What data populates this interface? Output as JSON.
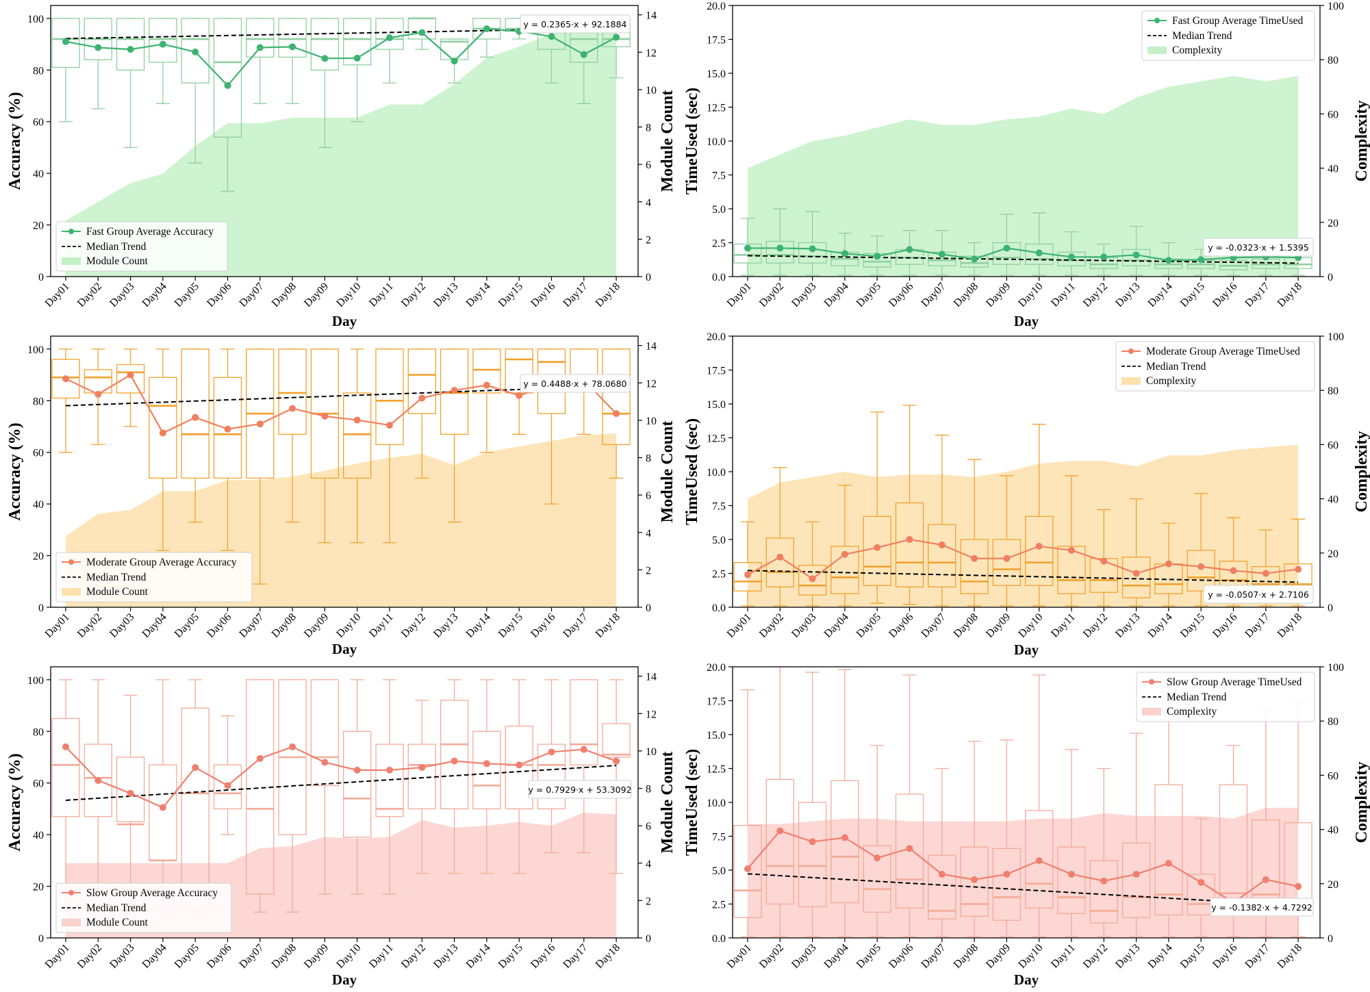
{
  "figure": {
    "xlabel": "Day",
    "days": [
      "Day01",
      "Day02",
      "Day03",
      "Day04",
      "Day05",
      "Day06",
      "Day07",
      "Day08",
      "Day09",
      "Day10",
      "Day11",
      "Day12",
      "Day13",
      "Day14",
      "Day15",
      "Day16",
      "Day17",
      "Day18"
    ]
  },
  "colors": {
    "fast": {
      "line": "#3cb371",
      "box": "#8fcf9f",
      "fill": "#c5f1c8"
    },
    "moderate": {
      "line": "#f07f5f",
      "box": "#f2a12d",
      "fill": "#fde0ad"
    },
    "slow": {
      "line": "#f07f6f",
      "box": "#f3aa98",
      "fill": "#fcd0cb"
    }
  },
  "chart_data": [
    {
      "id": "fast-accuracy",
      "group": "fast",
      "type": "line",
      "ylabel": "Accuracy (%)",
      "y2label": "Module Count",
      "ylim": [
        0,
        105
      ],
      "y2lim": [
        0,
        14.5
      ],
      "yticks": [
        0,
        20,
        40,
        60,
        80,
        100
      ],
      "y2ticks": [
        0,
        2,
        4,
        6,
        8,
        10,
        12,
        14
      ],
      "legend": [
        "Fast Group Average Accuracy",
        "Median Trend",
        "Module Count"
      ],
      "legend_position": "bottom-left",
      "equation": "y = 0.2365·x + 92.1884",
      "trend": {
        "slope": 0.2365,
        "intercept": 92.1884
      },
      "average": [
        91,
        88.7,
        88,
        90,
        87,
        74,
        88.7,
        89,
        84.5,
        84.6,
        92.5,
        94.5,
        83.5,
        96,
        95,
        93,
        86,
        92.7
      ],
      "secondary": [
        3,
        4,
        5,
        5.5,
        7,
        8.2,
        8.2,
        8.5,
        8.5,
        8.5,
        9.2,
        9.2,
        10.3,
        11.7,
        12.3,
        13,
        13.5,
        13.7
      ],
      "boxes": [
        [
          60,
          81,
          92,
          100,
          100
        ],
        [
          65,
          84,
          92,
          100,
          100
        ],
        [
          50,
          80,
          92,
          100,
          100
        ],
        [
          67,
          83,
          92,
          100,
          100
        ],
        [
          44,
          75,
          92,
          100,
          100
        ],
        [
          33,
          54,
          83,
          100,
          100
        ],
        [
          67,
          85,
          92,
          100,
          100
        ],
        [
          67,
          85,
          92,
          100,
          100
        ],
        [
          50,
          80,
          92,
          100,
          100
        ],
        [
          60,
          82,
          92,
          100,
          100
        ],
        [
          75,
          88,
          92,
          100,
          100
        ],
        [
          88,
          92,
          100,
          100,
          100
        ],
        [
          75,
          84,
          91,
          92,
          92
        ],
        [
          85,
          92,
          96,
          100,
          100
        ],
        [
          92,
          95,
          96,
          100,
          100
        ],
        [
          75,
          88,
          96,
          100,
          100
        ],
        [
          67,
          83,
          92,
          100,
          100
        ],
        [
          77,
          89,
          92,
          100,
          100
        ]
      ]
    },
    {
      "id": "fast-time",
      "group": "fast",
      "type": "line",
      "ylabel": "TimeUsed (sec)",
      "y2label": "Complexity",
      "ylim": [
        0,
        20
      ],
      "y2lim": [
        0,
        100
      ],
      "yticks": [
        0,
        2.5,
        5,
        7.5,
        10,
        12.5,
        15,
        17.5,
        20
      ],
      "yticklabels": [
        "0.0",
        "2.5",
        "5.0",
        "7.5",
        "10.0",
        "12.5",
        "15.0",
        "17.5",
        "20.0"
      ],
      "y2ticks": [
        0,
        20,
        40,
        60,
        80,
        100
      ],
      "legend": [
        "Fast Group Average TimeUsed",
        "Median Trend",
        "Complexity"
      ],
      "legend_position": "top-right",
      "equation": "y = -0.0323·x + 1.5395",
      "trend": {
        "slope": -0.0323,
        "intercept": 1.5395
      },
      "average": [
        2.1,
        2.1,
        2.05,
        1.7,
        1.5,
        2.0,
        1.65,
        1.3,
        2.1,
        1.75,
        1.45,
        1.45,
        1.6,
        1.2,
        1.25,
        1.4,
        1.45,
        1.4
      ],
      "secondary": [
        40,
        45,
        50,
        52,
        55,
        58,
        56,
        56,
        58,
        59,
        62,
        60,
        66,
        70,
        72,
        74,
        72,
        74
      ],
      "boxes": [
        [
          0.1,
          1.0,
          1.6,
          2.4,
          4.3
        ],
        [
          0.1,
          1.0,
          1.6,
          2.6,
          5.0
        ],
        [
          0.1,
          1.0,
          1.5,
          2.5,
          4.8
        ],
        [
          0.1,
          0.8,
          1.3,
          1.8,
          3.2
        ],
        [
          0.1,
          0.7,
          1.1,
          1.7,
          3.0
        ],
        [
          0.1,
          0.9,
          1.4,
          2.0,
          3.4
        ],
        [
          0.1,
          0.8,
          1.2,
          1.8,
          3.4
        ],
        [
          0.1,
          0.7,
          1.0,
          1.5,
          2.5
        ],
        [
          0.1,
          0.9,
          1.4,
          2.5,
          4.6
        ],
        [
          0.1,
          0.9,
          1.3,
          2.4,
          4.7
        ],
        [
          0.1,
          0.8,
          1.2,
          1.8,
          3.3
        ],
        [
          0.1,
          0.6,
          0.9,
          1.4,
          2.4
        ],
        [
          0.1,
          0.8,
          1.2,
          2.0,
          3.7
        ],
        [
          0.1,
          0.6,
          0.9,
          1.3,
          2.5
        ],
        [
          0.1,
          0.6,
          0.9,
          1.2,
          2.0
        ],
        [
          0.1,
          0.5,
          0.8,
          1.2,
          2.0
        ],
        [
          0.1,
          0.6,
          0.9,
          1.3,
          2.3
        ],
        [
          0.1,
          0.6,
          0.9,
          1.4,
          2.4
        ]
      ]
    },
    {
      "id": "moderate-accuracy",
      "group": "moderate",
      "type": "line",
      "ylabel": "Accuracy (%)",
      "y2label": "Module Count",
      "ylim": [
        0,
        105
      ],
      "y2lim": [
        0,
        14.5
      ],
      "yticks": [
        0,
        20,
        40,
        60,
        80,
        100
      ],
      "y2ticks": [
        0,
        2,
        4,
        6,
        8,
        10,
        12,
        14
      ],
      "legend": [
        "Moderate Group Average Accuracy",
        "Median Trend",
        "Module Count"
      ],
      "legend_position": "bottom-left",
      "equation": "y = 0.4488·x + 78.0680",
      "trend": {
        "slope": 0.4488,
        "intercept": 78.068
      },
      "average": [
        88.5,
        82.5,
        90,
        67.5,
        73.5,
        69,
        71,
        77,
        74,
        72.5,
        70.5,
        81,
        84,
        86,
        82,
        86,
        88,
        75
      ],
      "secondary": [
        3.8,
        5,
        5.2,
        6.2,
        6.2,
        6.8,
        6.8,
        7,
        7.3,
        7.7,
        8,
        8.2,
        7.6,
        8.3,
        8.6,
        8.9,
        9.2,
        9.3
      ],
      "boxes": [
        [
          60,
          81,
          89,
          96,
          100
        ],
        [
          63,
          83,
          89,
          92,
          100
        ],
        [
          70,
          83,
          91,
          94,
          100
        ],
        [
          22,
          50,
          78,
          89,
          100
        ],
        [
          33,
          50,
          67,
          100,
          100
        ],
        [
          22,
          50,
          67,
          89,
          100
        ],
        [
          9,
          50,
          75,
          100,
          100
        ],
        [
          33,
          67,
          83,
          100,
          100
        ],
        [
          25,
          50,
          75,
          100,
          100
        ],
        [
          25,
          50,
          67,
          83,
          100
        ],
        [
          25,
          63,
          80,
          100,
          100
        ],
        [
          50,
          75,
          90,
          100,
          100
        ],
        [
          33,
          67,
          83,
          100,
          100
        ],
        [
          60,
          83,
          92,
          100,
          100
        ],
        [
          67,
          83,
          96,
          100,
          100
        ],
        [
          40,
          75,
          95,
          100,
          100
        ],
        [
          67,
          84,
          89,
          100,
          100
        ],
        [
          50,
          63,
          75,
          100,
          100
        ]
      ]
    },
    {
      "id": "moderate-time",
      "group": "moderate",
      "type": "line",
      "ylabel": "TimeUsed (sec)",
      "y2label": "Complexity",
      "ylim": [
        0,
        20
      ],
      "y2lim": [
        0,
        100
      ],
      "yticks": [
        0,
        2.5,
        5,
        7.5,
        10,
        12.5,
        15,
        17.5,
        20
      ],
      "yticklabels": [
        "0.0",
        "2.5",
        "5.0",
        "7.5",
        "10.0",
        "12.5",
        "15.0",
        "17.5",
        "20.0"
      ],
      "y2ticks": [
        0,
        20,
        40,
        60,
        80,
        100
      ],
      "legend": [
        "Moderate Group Average TimeUsed",
        "Median Trend",
        "Complexity"
      ],
      "legend_position": "top-right",
      "equation": "y = -0.0507·x + 2.7106",
      "trend": {
        "slope": -0.0507,
        "intercept": 2.7106
      },
      "average": [
        2.4,
        3.7,
        2.1,
        3.9,
        4.4,
        5.0,
        4.6,
        3.6,
        3.6,
        4.5,
        4.2,
        3.4,
        2.5,
        3.2,
        3.0,
        2.7,
        2.5,
        2.8
      ],
      "secondary": [
        40,
        46,
        48,
        50,
        48,
        49,
        49,
        48,
        50,
        53,
        54,
        54,
        52,
        56,
        56,
        58,
        59,
        60
      ],
      "boxes": [
        [
          0.1,
          1.2,
          1.9,
          3.3,
          6.3
        ],
        [
          0.1,
          1.5,
          2.6,
          5.1,
          10.3
        ],
        [
          0.1,
          0.9,
          1.6,
          3.1,
          6.3
        ],
        [
          0.1,
          1.0,
          2.2,
          4.5,
          9.0
        ],
        [
          0.3,
          1.6,
          3.0,
          6.7,
          14.4
        ],
        [
          0.2,
          1.5,
          3.3,
          7.7,
          14.9
        ],
        [
          0.1,
          1.5,
          3.3,
          6.1,
          12.7
        ],
        [
          0.1,
          1.0,
          1.9,
          5.0,
          10.9
        ],
        [
          0.1,
          1.6,
          2.8,
          5.0,
          9.7
        ],
        [
          0.1,
          1.6,
          3.3,
          6.7,
          13.5
        ],
        [
          0.1,
          1.0,
          2.0,
          4.5,
          9.7
        ],
        [
          0.1,
          1.1,
          2.0,
          3.6,
          7.2
        ],
        [
          0.1,
          0.7,
          1.6,
          3.7,
          8.0
        ],
        [
          0.1,
          1.0,
          1.7,
          3.2,
          6.2
        ],
        [
          0.1,
          1.2,
          2.2,
          4.2,
          8.4
        ],
        [
          0.1,
          1.0,
          2.0,
          3.4,
          6.6
        ],
        [
          0.1,
          0.9,
          1.7,
          3.0,
          5.7
        ],
        [
          0.1,
          1.1,
          1.7,
          3.2,
          6.5
        ]
      ]
    },
    {
      "id": "slow-accuracy",
      "group": "slow",
      "type": "line",
      "ylabel": "Accuracy (%)",
      "y2label": "Module Count",
      "ylim": [
        0,
        105
      ],
      "y2lim": [
        0,
        14.5
      ],
      "yticks": [
        0,
        20,
        40,
        60,
        80,
        100
      ],
      "y2ticks": [
        0,
        2,
        4,
        6,
        8,
        10,
        12,
        14
      ],
      "legend": [
        "Slow Group Average Accuracy",
        "Median Trend",
        "Module Count"
      ],
      "legend_position": "bottom-left",
      "equation": "y = 0.7929·x + 53.3092",
      "trend": {
        "slope": 0.7929,
        "intercept": 53.3092
      },
      "average": [
        74,
        61,
        56,
        50.5,
        66,
        59,
        69.5,
        74,
        68,
        65,
        65,
        66,
        68.5,
        67.5,
        67,
        72,
        73,
        68.5
      ],
      "secondary": [
        4,
        4,
        4,
        4,
        4,
        4,
        4.8,
        4.9,
        5.4,
        5.3,
        5.4,
        6.3,
        5.9,
        6,
        6.2,
        6,
        6.7,
        6.6
      ],
      "boxes": [
        [
          10,
          47,
          67,
          85,
          100
        ],
        [
          10,
          47,
          62,
          75,
          100
        ],
        [
          10,
          45,
          44,
          70,
          94
        ],
        [
          10,
          30,
          30,
          67,
          100
        ],
        [
          10,
          11,
          56,
          89,
          100
        ],
        [
          40,
          50,
          56,
          67,
          86
        ],
        [
          10,
          17,
          50,
          100,
          100
        ],
        [
          10,
          40,
          70,
          100,
          100
        ],
        [
          17,
          59,
          70,
          100,
          100
        ],
        [
          17,
          39,
          54,
          80,
          100
        ],
        [
          17,
          47,
          50,
          75,
          100
        ],
        [
          25,
          50,
          67,
          75,
          92
        ],
        [
          25,
          50,
          75,
          92,
          100
        ],
        [
          25,
          50,
          59,
          80,
          100
        ],
        [
          25,
          50,
          67,
          82,
          100
        ],
        [
          33,
          50,
          67,
          75,
          100
        ],
        [
          33,
          67,
          75,
          100,
          100
        ],
        [
          25,
          70,
          71,
          83,
          100
        ]
      ]
    },
    {
      "id": "slow-time",
      "group": "slow",
      "type": "line",
      "ylabel": "TimeUsed (sec)",
      "y2label": "Complexity",
      "ylim": [
        0,
        20
      ],
      "y2lim": [
        0,
        100
      ],
      "yticks": [
        0,
        2.5,
        5,
        7.5,
        10,
        12.5,
        15,
        17.5,
        20
      ],
      "yticklabels": [
        "0.0",
        "2.5",
        "5.0",
        "7.5",
        "10.0",
        "12.5",
        "15.0",
        "17.5",
        "20.0"
      ],
      "y2ticks": [
        0,
        20,
        40,
        60,
        80,
        100
      ],
      "legend": [
        "Slow Group Average TimeUsed",
        "Median Trend",
        "Complexity"
      ],
      "legend_position": "top-right",
      "equation": "y = -0.1382·x + 4.7292",
      "trend": {
        "slope": -0.1382,
        "intercept": 4.7292
      },
      "average": [
        5.1,
        7.9,
        7.1,
        7.4,
        5.9,
        6.6,
        4.7,
        4.3,
        4.7,
        5.7,
        4.7,
        4.2,
        4.7,
        5.5,
        4.1,
        2.6,
        4.3,
        3.8
      ],
      "secondary": [
        42,
        42,
        43,
        44,
        44,
        43,
        43,
        43,
        43,
        44,
        44,
        46,
        45,
        45,
        45,
        44,
        48,
        48
      ],
      "boxes": [
        [
          0.1,
          1.5,
          3.5,
          8.3,
          18.3
        ],
        [
          0.1,
          2.5,
          5.3,
          11.7,
          20
        ],
        [
          0.1,
          2.3,
          5.3,
          10.0,
          19.6
        ],
        [
          0.1,
          2.6,
          6.0,
          11.6,
          19.8
        ],
        [
          0.1,
          1.9,
          3.6,
          6.8,
          14.2
        ],
        [
          0.1,
          2.2,
          4.3,
          10.6,
          19.4
        ],
        [
          0.1,
          1.4,
          2.0,
          6.1,
          12.5
        ],
        [
          0.1,
          1.6,
          2.5,
          6.7,
          14.5
        ],
        [
          0.1,
          1.3,
          3.0,
          6.6,
          14.6
        ],
        [
          0.1,
          2.2,
          4.0,
          9.4,
          19.4
        ],
        [
          0.1,
          1.8,
          3.0,
          6.7,
          13.9
        ],
        [
          0.1,
          1.1,
          2.0,
          5.7,
          12.5
        ],
        [
          0.1,
          1.5,
          3.0,
          7.0,
          15.1
        ],
        [
          0.1,
          1.7,
          3.2,
          11.3,
          19.0
        ],
        [
          0.1,
          1.7,
          2.5,
          4.7,
          8.8
        ],
        [
          0.1,
          2.6,
          3.3,
          11.3,
          14.2
        ],
        [
          0.1,
          2.3,
          3.2,
          8.7,
          16.9
        ],
        [
          0.1,
          1.9,
          2.8,
          8.5,
          17.4
        ]
      ]
    }
  ]
}
